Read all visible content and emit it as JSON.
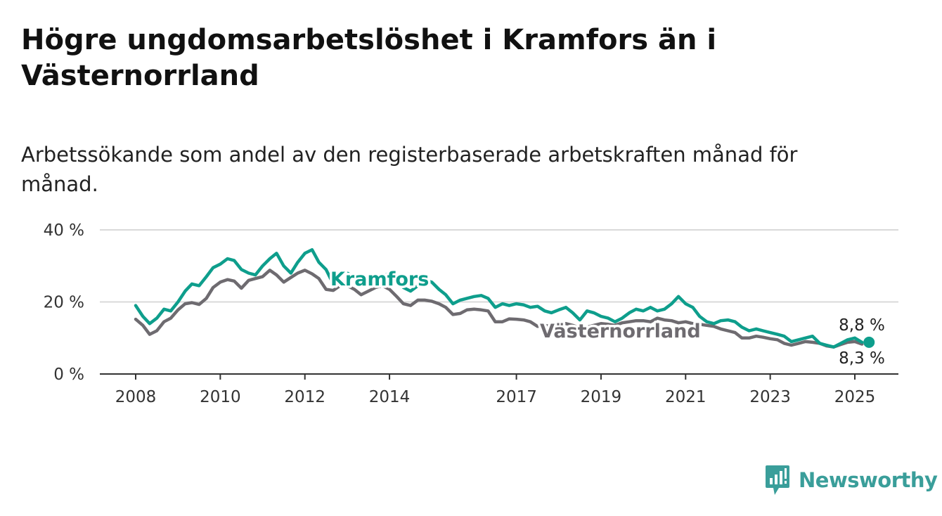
{
  "title": "Högre ungdomsarbetslöshet i Kramfors än i Västernorrland",
  "subtitle": "Arbetssökande som andel av den registerbaserade arbetskraften månad för månad.",
  "brand": {
    "name": "Newsworthy",
    "icon": "newsworthy-logo-icon",
    "color": "#3a9e9a"
  },
  "chart_data": {
    "type": "line",
    "y_ticks": [
      0,
      20,
      40
    ],
    "y_tick_labels": [
      "0 %",
      "20 %",
      "40 %"
    ],
    "ylim": [
      0,
      40
    ],
    "x_ticks": [
      2008,
      2010,
      2012,
      2014,
      2017,
      2019,
      2021,
      2023,
      2025
    ],
    "xlim": [
      2007.2,
      2026.05
    ],
    "grid": true,
    "legend": "inline labels",
    "series": [
      {
        "name": "Västernorrland",
        "color": "#6e6b70",
        "end_label": "8,3 %",
        "points": [
          [
            2008.0,
            15.2
          ],
          [
            2008.17,
            13.5
          ],
          [
            2008.33,
            11.0
          ],
          [
            2008.5,
            12.0
          ],
          [
            2008.67,
            14.5
          ],
          [
            2008.83,
            15.5
          ],
          [
            2009.0,
            17.8
          ],
          [
            2009.17,
            19.5
          ],
          [
            2009.33,
            19.8
          ],
          [
            2009.5,
            19.3
          ],
          [
            2009.67,
            21.0
          ],
          [
            2009.83,
            24.0
          ],
          [
            2010.0,
            25.5
          ],
          [
            2010.17,
            26.2
          ],
          [
            2010.33,
            25.8
          ],
          [
            2010.5,
            23.8
          ],
          [
            2010.67,
            26.0
          ],
          [
            2010.83,
            26.5
          ],
          [
            2011.0,
            27.0
          ],
          [
            2011.17,
            28.8
          ],
          [
            2011.33,
            27.5
          ],
          [
            2011.5,
            25.5
          ],
          [
            2011.67,
            26.8
          ],
          [
            2011.83,
            28.0
          ],
          [
            2012.0,
            28.8
          ],
          [
            2012.17,
            27.8
          ],
          [
            2012.33,
            26.5
          ],
          [
            2012.5,
            23.5
          ],
          [
            2012.67,
            23.2
          ],
          [
            2012.83,
            24.5
          ],
          [
            2013.0,
            24.5
          ],
          [
            2013.17,
            23.5
          ],
          [
            2013.33,
            22.0
          ],
          [
            2013.5,
            23.0
          ],
          [
            2013.67,
            24.0
          ],
          [
            2013.83,
            24.5
          ],
          [
            2014.0,
            23.5
          ],
          [
            2014.17,
            21.5
          ],
          [
            2014.33,
            19.5
          ],
          [
            2014.5,
            19.0
          ],
          [
            2014.67,
            20.5
          ],
          [
            2014.83,
            20.5
          ],
          [
            2015.0,
            20.2
          ],
          [
            2015.17,
            19.5
          ],
          [
            2015.33,
            18.5
          ],
          [
            2015.5,
            16.5
          ],
          [
            2015.67,
            16.8
          ],
          [
            2015.83,
            17.8
          ],
          [
            2016.0,
            18.0
          ],
          [
            2016.17,
            17.8
          ],
          [
            2016.33,
            17.5
          ],
          [
            2016.5,
            14.5
          ],
          [
            2016.67,
            14.5
          ],
          [
            2016.83,
            15.3
          ],
          [
            2017.0,
            15.2
          ],
          [
            2017.17,
            15.0
          ],
          [
            2017.33,
            14.5
          ],
          [
            2017.5,
            13.2
          ],
          [
            2017.67,
            13.5
          ],
          [
            2017.83,
            13.2
          ],
          [
            2018.0,
            13.8
          ],
          [
            2018.17,
            14.0
          ],
          [
            2018.33,
            13.5
          ],
          [
            2018.5,
            12.8
          ],
          [
            2018.67,
            13.0
          ],
          [
            2018.83,
            13.5
          ],
          [
            2019.0,
            14.0
          ],
          [
            2019.17,
            13.8
          ],
          [
            2019.33,
            13.5
          ],
          [
            2019.5,
            14.2
          ],
          [
            2019.67,
            14.5
          ],
          [
            2019.83,
            14.8
          ],
          [
            2020.0,
            14.8
          ],
          [
            2020.17,
            14.5
          ],
          [
            2020.33,
            15.5
          ],
          [
            2020.5,
            15.0
          ],
          [
            2020.67,
            14.8
          ],
          [
            2020.83,
            14.2
          ],
          [
            2021.0,
            14.5
          ],
          [
            2021.17,
            14.0
          ],
          [
            2021.33,
            13.8
          ],
          [
            2021.5,
            13.5
          ],
          [
            2021.67,
            13.2
          ],
          [
            2021.83,
            12.5
          ],
          [
            2022.0,
            12.0
          ],
          [
            2022.17,
            11.5
          ],
          [
            2022.33,
            10.0
          ],
          [
            2022.5,
            10.0
          ],
          [
            2022.67,
            10.5
          ],
          [
            2022.83,
            10.2
          ],
          [
            2023.0,
            9.8
          ],
          [
            2023.17,
            9.5
          ],
          [
            2023.33,
            8.5
          ],
          [
            2023.5,
            8.0
          ],
          [
            2023.67,
            8.5
          ],
          [
            2023.83,
            9.0
          ],
          [
            2024.0,
            8.8
          ],
          [
            2024.17,
            8.5
          ],
          [
            2024.33,
            7.8
          ],
          [
            2024.5,
            7.5
          ],
          [
            2024.67,
            8.2
          ],
          [
            2024.83,
            8.8
          ],
          [
            2025.0,
            9.0
          ],
          [
            2025.17,
            8.3
          ]
        ]
      },
      {
        "name": "Kramfors",
        "color": "#0e9e8c",
        "end_label": "8,8 %",
        "points": [
          [
            2008.0,
            19.0
          ],
          [
            2008.17,
            16.0
          ],
          [
            2008.33,
            14.0
          ],
          [
            2008.5,
            15.5
          ],
          [
            2008.67,
            18.0
          ],
          [
            2008.83,
            17.5
          ],
          [
            2009.0,
            20.0
          ],
          [
            2009.17,
            23.0
          ],
          [
            2009.33,
            25.0
          ],
          [
            2009.5,
            24.5
          ],
          [
            2009.67,
            27.0
          ],
          [
            2009.83,
            29.5
          ],
          [
            2010.0,
            30.5
          ],
          [
            2010.17,
            32.0
          ],
          [
            2010.33,
            31.5
          ],
          [
            2010.5,
            29.0
          ],
          [
            2010.67,
            28.0
          ],
          [
            2010.83,
            27.5
          ],
          [
            2011.0,
            30.0
          ],
          [
            2011.17,
            32.0
          ],
          [
            2011.33,
            33.5
          ],
          [
            2011.5,
            30.0
          ],
          [
            2011.67,
            28.0
          ],
          [
            2011.83,
            31.0
          ],
          [
            2012.0,
            33.5
          ],
          [
            2012.17,
            34.5
          ],
          [
            2012.33,
            31.0
          ],
          [
            2012.5,
            29.0
          ],
          [
            2012.67,
            25.0
          ],
          [
            2012.83,
            27.5
          ],
          [
            2013.0,
            28.0
          ],
          [
            2013.17,
            27.0
          ],
          [
            2013.33,
            26.0
          ],
          [
            2013.5,
            24.5
          ],
          [
            2013.67,
            25.5
          ],
          [
            2013.83,
            27.0
          ],
          [
            2014.0,
            28.0
          ],
          [
            2014.17,
            26.5
          ],
          [
            2014.33,
            24.0
          ],
          [
            2014.5,
            23.0
          ],
          [
            2014.67,
            24.5
          ],
          [
            2014.83,
            26.0
          ],
          [
            2015.0,
            25.5
          ],
          [
            2015.17,
            23.5
          ],
          [
            2015.33,
            22.0
          ],
          [
            2015.5,
            19.5
          ],
          [
            2015.67,
            20.5
          ],
          [
            2015.83,
            21.0
          ],
          [
            2016.0,
            21.5
          ],
          [
            2016.17,
            21.8
          ],
          [
            2016.33,
            21.0
          ],
          [
            2016.5,
            18.5
          ],
          [
            2016.67,
            19.5
          ],
          [
            2016.83,
            19.0
          ],
          [
            2017.0,
            19.5
          ],
          [
            2017.17,
            19.2
          ],
          [
            2017.33,
            18.5
          ],
          [
            2017.5,
            18.8
          ],
          [
            2017.67,
            17.5
          ],
          [
            2017.83,
            17.0
          ],
          [
            2018.0,
            17.8
          ],
          [
            2018.17,
            18.5
          ],
          [
            2018.33,
            17.0
          ],
          [
            2018.5,
            15.0
          ],
          [
            2018.67,
            17.5
          ],
          [
            2018.83,
            17.0
          ],
          [
            2019.0,
            16.0
          ],
          [
            2019.17,
            15.5
          ],
          [
            2019.33,
            14.5
          ],
          [
            2019.5,
            15.5
          ],
          [
            2019.67,
            17.0
          ],
          [
            2019.83,
            18.0
          ],
          [
            2020.0,
            17.5
          ],
          [
            2020.17,
            18.5
          ],
          [
            2020.33,
            17.5
          ],
          [
            2020.5,
            18.0
          ],
          [
            2020.67,
            19.5
          ],
          [
            2020.83,
            21.5
          ],
          [
            2021.0,
            19.5
          ],
          [
            2021.17,
            18.5
          ],
          [
            2021.33,
            16.0
          ],
          [
            2021.5,
            14.5
          ],
          [
            2021.67,
            14.0
          ],
          [
            2021.83,
            14.8
          ],
          [
            2022.0,
            15.0
          ],
          [
            2022.17,
            14.5
          ],
          [
            2022.33,
            13.0
          ],
          [
            2022.5,
            12.0
          ],
          [
            2022.67,
            12.5
          ],
          [
            2022.83,
            12.0
          ],
          [
            2023.0,
            11.5
          ],
          [
            2023.17,
            11.0
          ],
          [
            2023.33,
            10.5
          ],
          [
            2023.5,
            9.0
          ],
          [
            2023.67,
            9.5
          ],
          [
            2023.83,
            10.0
          ],
          [
            2024.0,
            10.5
          ],
          [
            2024.17,
            8.5
          ],
          [
            2024.33,
            8.0
          ],
          [
            2024.5,
            7.5
          ],
          [
            2024.67,
            8.5
          ],
          [
            2024.83,
            9.5
          ],
          [
            2025.0,
            10.0
          ],
          [
            2025.17,
            8.8
          ]
        ]
      }
    ]
  }
}
